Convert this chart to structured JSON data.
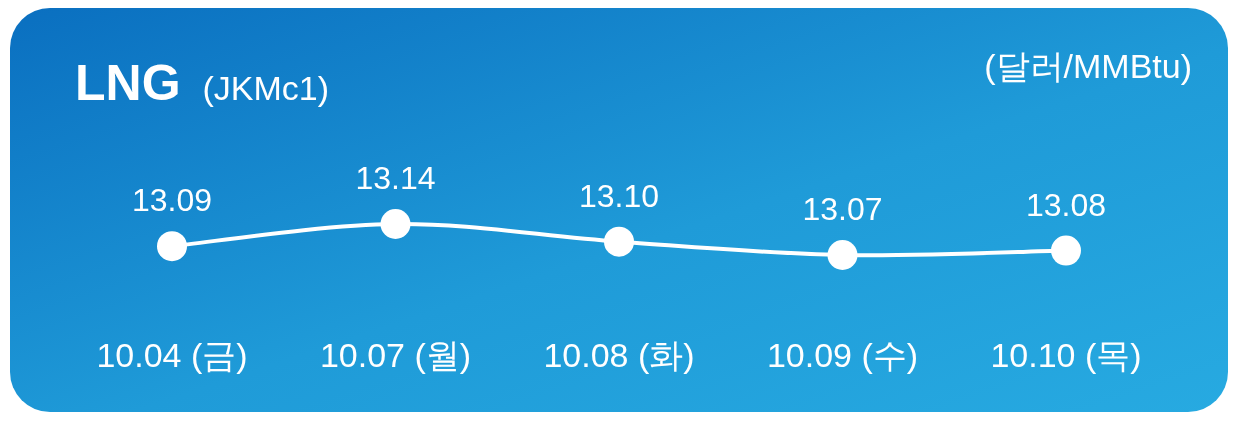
{
  "chart_data": {
    "type": "line",
    "title": "LNG",
    "subtitle": "(JKMc1)",
    "ylabel": "(달러/MMBtu)",
    "categories": [
      "10.04 (금)",
      "10.07 (월)",
      "10.08 (화)",
      "10.09 (수)",
      "10.10 (목)"
    ],
    "series": [
      {
        "color": "#ffffff",
        "values": [
          13.09,
          13.14,
          13.1,
          13.07,
          13.08
        ],
        "value_labels": [
          "13.09",
          "13.14",
          "13.10",
          "13.07",
          "13.08"
        ]
      }
    ],
    "marker": "circle",
    "line_style": "solid"
  }
}
